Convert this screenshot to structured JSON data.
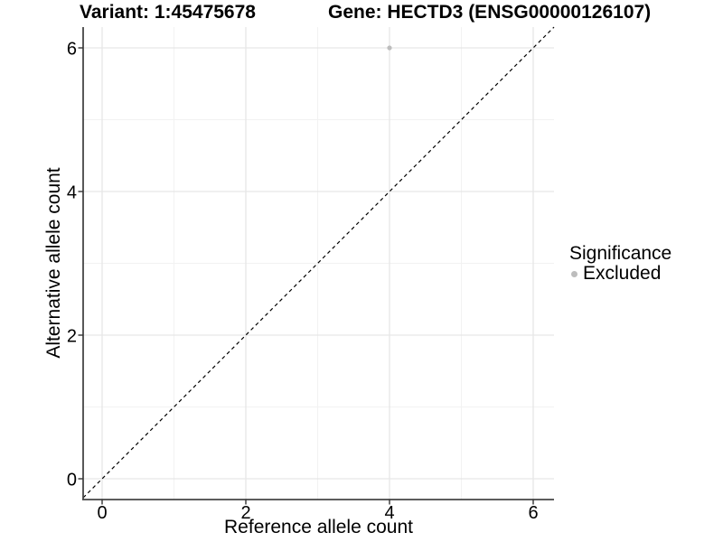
{
  "figure": {
    "background": "#ffffff"
  },
  "chart_data": {
    "type": "scatter",
    "titles": {
      "left": "Variant: 1:45475678",
      "right": "Gene: HECTD3 (ENSG00000126107)"
    },
    "xlabel": "Reference allele count",
    "ylabel": "Alternative allele count",
    "x_ticks": [
      0,
      2,
      4,
      6
    ],
    "y_ticks": [
      0,
      2,
      4,
      6
    ],
    "x_minor_ticks": [
      1,
      3,
      5
    ],
    "y_minor_ticks": [
      1,
      3,
      5
    ],
    "xlim": [
      -0.3,
      6.3
    ],
    "ylim": [
      -0.3,
      6.3
    ],
    "grid": "on",
    "legend_position": "right",
    "reference_line": {
      "kind": "identity",
      "slope": 1,
      "intercept": 0,
      "style": "dashed",
      "color": "#000000"
    },
    "series": [
      {
        "name": "Excluded",
        "color": "#bdbdbd",
        "points": [
          {
            "x": 4,
            "y": 6
          }
        ]
      }
    ],
    "legend": {
      "title": "Significance",
      "items": [
        {
          "label": "Excluded",
          "color": "#bdbdbd",
          "marker": "circle"
        }
      ]
    },
    "style": {
      "axis_color": "#454545",
      "tick_color": "#333333",
      "grid_major_color": "#e6e6e6",
      "grid_minor_color": "#f2f2f2",
      "tick_label_color": "#000000",
      "point_radius": 2.6,
      "legend_marker_radius": 3.5
    }
  }
}
